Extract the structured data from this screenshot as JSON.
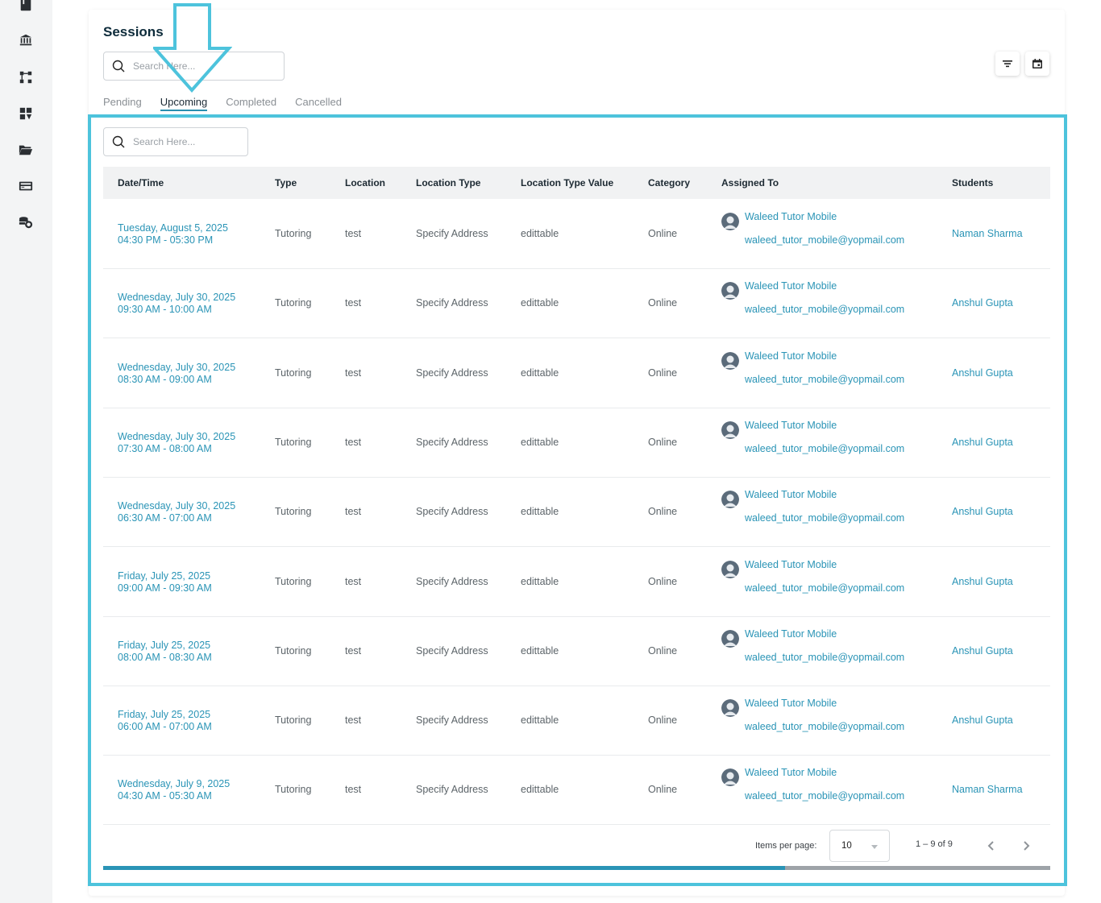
{
  "sidebar": {
    "icons": [
      "book-icon",
      "bank-icon",
      "workflow-icon",
      "dashboard-icon",
      "folder-open-icon",
      "credit-card-icon",
      "coins-icon"
    ]
  },
  "page": {
    "title": "Sessions",
    "search_placeholder": "Search Here..."
  },
  "tabs": [
    {
      "label": "Pending",
      "active": false
    },
    {
      "label": "Upcoming",
      "active": true
    },
    {
      "label": "Completed",
      "active": false
    },
    {
      "label": "Cancelled",
      "active": false
    }
  ],
  "table": {
    "search_placeholder": "Search Here...",
    "columns": [
      "Date/Time",
      "Type",
      "Location",
      "Location Type",
      "Location Type Value",
      "Category",
      "Assigned To",
      "Students"
    ],
    "rows": [
      {
        "date": "Tuesday, August 5, 2025",
        "time": "04:30 PM - 05:30 PM",
        "type": "Tutoring",
        "location": "test",
        "location_type": "Specify Address",
        "location_value": "edittable",
        "category": "Online",
        "tutor_name": "Waleed Tutor Mobile",
        "tutor_email": "waleed_tutor_mobile@yopmail.com",
        "student": "Naman Sharma"
      },
      {
        "date": "Wednesday, July 30, 2025",
        "time": "09:30 AM - 10:00 AM",
        "type": "Tutoring",
        "location": "test",
        "location_type": "Specify Address",
        "location_value": "edittable",
        "category": "Online",
        "tutor_name": "Waleed Tutor Mobile",
        "tutor_email": "waleed_tutor_mobile@yopmail.com",
        "student": "Anshul Gupta"
      },
      {
        "date": "Wednesday, July 30, 2025",
        "time": "08:30 AM - 09:00 AM",
        "type": "Tutoring",
        "location": "test",
        "location_type": "Specify Address",
        "location_value": "edittable",
        "category": "Online",
        "tutor_name": "Waleed Tutor Mobile",
        "tutor_email": "waleed_tutor_mobile@yopmail.com",
        "student": "Anshul Gupta"
      },
      {
        "date": "Wednesday, July 30, 2025",
        "time": "07:30 AM - 08:00 AM",
        "type": "Tutoring",
        "location": "test",
        "location_type": "Specify Address",
        "location_value": "edittable",
        "category": "Online",
        "tutor_name": "Waleed Tutor Mobile",
        "tutor_email": "waleed_tutor_mobile@yopmail.com",
        "student": "Anshul Gupta"
      },
      {
        "date": "Wednesday, July 30, 2025",
        "time": "06:30 AM - 07:00 AM",
        "type": "Tutoring",
        "location": "test",
        "location_type": "Specify Address",
        "location_value": "edittable",
        "category": "Online",
        "tutor_name": "Waleed Tutor Mobile",
        "tutor_email": "waleed_tutor_mobile@yopmail.com",
        "student": "Anshul Gupta"
      },
      {
        "date": "Friday, July 25, 2025",
        "time": "09:00 AM - 09:30 AM",
        "type": "Tutoring",
        "location": "test",
        "location_type": "Specify Address",
        "location_value": "edittable",
        "category": "Online",
        "tutor_name": "Waleed Tutor Mobile",
        "tutor_email": "waleed_tutor_mobile@yopmail.com",
        "student": "Anshul Gupta"
      },
      {
        "date": "Friday, July 25, 2025",
        "time": "08:00 AM - 08:30 AM",
        "type": "Tutoring",
        "location": "test",
        "location_type": "Specify Address",
        "location_value": "edittable",
        "category": "Online",
        "tutor_name": "Waleed Tutor Mobile",
        "tutor_email": "waleed_tutor_mobile@yopmail.com",
        "student": "Anshul Gupta"
      },
      {
        "date": "Friday, July 25, 2025",
        "time": "06:00 AM - 07:00 AM",
        "type": "Tutoring",
        "location": "test",
        "location_type": "Specify Address",
        "location_value": "edittable",
        "category": "Online",
        "tutor_name": "Waleed Tutor Mobile",
        "tutor_email": "waleed_tutor_mobile@yopmail.com",
        "student": "Anshul Gupta"
      },
      {
        "date": "Wednesday, July 9, 2025",
        "time": "04:30 AM - 05:30 AM",
        "type": "Tutoring",
        "location": "test",
        "location_type": "Specify Address",
        "location_value": "edittable",
        "category": "Online",
        "tutor_name": "Waleed Tutor Mobile",
        "tutor_email": "waleed_tutor_mobile@yopmail.com",
        "student": "Naman Sharma"
      }
    ]
  },
  "paginator": {
    "items_per_page_label": "Items per page:",
    "items_per_page": "10",
    "range": "1 – 9 of 9",
    "scroll_fraction": 0.72
  },
  "colors": {
    "accent": "#2a94b6",
    "highlight": "#4dc3dc"
  }
}
